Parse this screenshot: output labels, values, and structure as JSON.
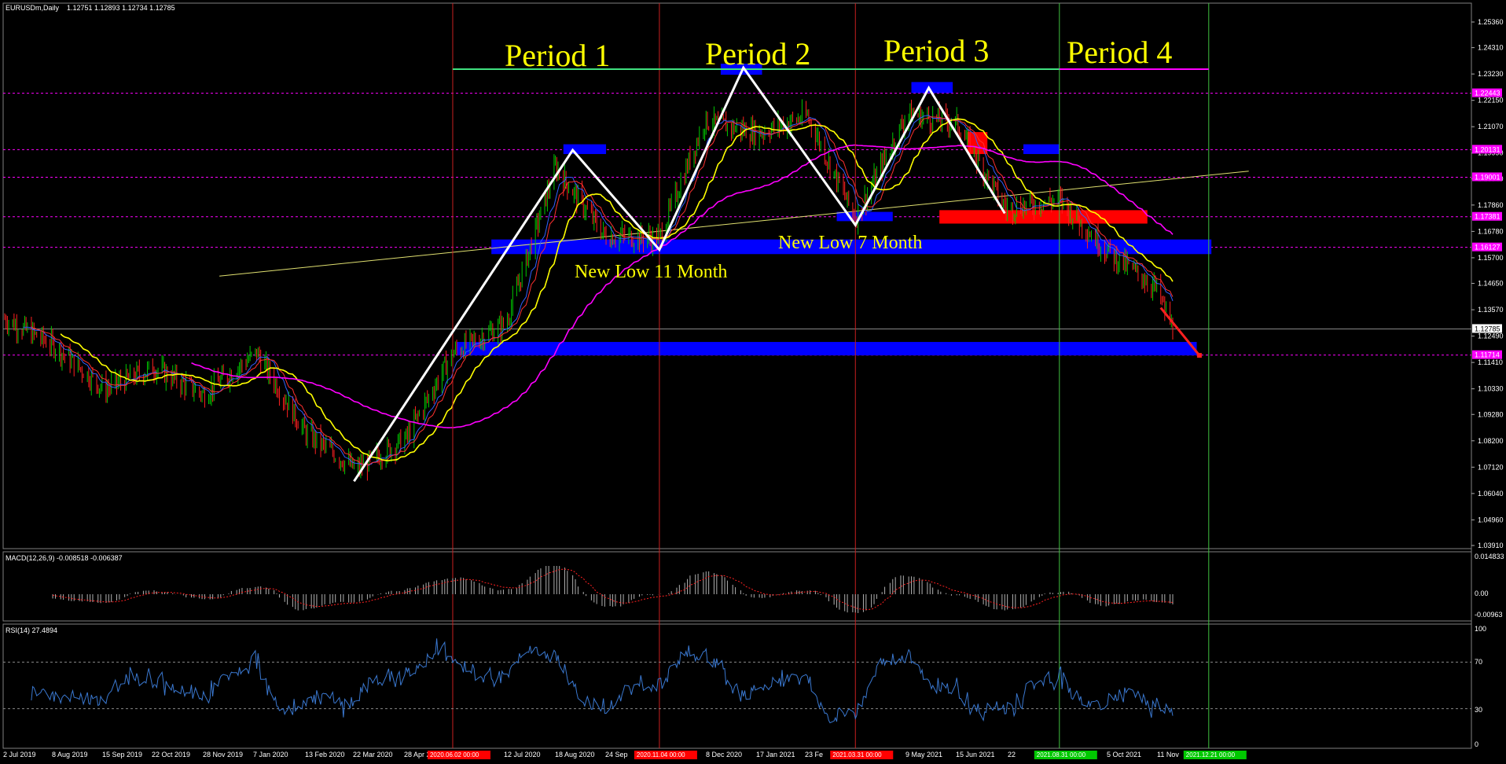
{
  "header": {
    "title": "EURUSDm,Daily",
    "ohlc": "1.12751 1.12893 1.12734 1.12785"
  },
  "colors": {
    "background": "#000000",
    "price_line": "#ffff00",
    "ma_slow": "#ff00ff",
    "bull_candle": "#00c800",
    "bear_candle": "#ff2020",
    "zone_blue": "#0000ff",
    "zone_red": "#ff0000",
    "rsi_line": "#3a78d0"
  },
  "price_axis": {
    "labels": [
      "1.25360",
      "1.24310",
      "1.23230",
      "1.22150",
      "1.21070",
      "1.19990",
      "1.18940",
      "1.17860",
      "1.16780",
      "1.15700",
      "1.14650",
      "1.13570",
      "1.12490",
      "1.11410",
      "1.10330",
      "1.09280",
      "1.08200",
      "1.07120",
      "1.06040",
      "1.04960",
      "1.03910"
    ],
    "markers": [
      {
        "value": "1.22443",
        "color": "#ff00ff"
      },
      {
        "value": "1.20131",
        "color": "#ff00ff"
      },
      {
        "value": "1.19001",
        "color": "#ff00ff"
      },
      {
        "value": "1.17381",
        "color": "#ff00ff"
      },
      {
        "value": "1.16127",
        "color": "#ff00ff"
      },
      {
        "value": "1.12785",
        "color": "#000000",
        "bg": "#ffffff"
      },
      {
        "value": "1.11714",
        "color": "#ff00ff"
      }
    ]
  },
  "macd": {
    "title": "MACD(12,26,9) -0.008518 -0.006387",
    "axis": [
      "0.014833",
      "0.00",
      "-0.00963"
    ]
  },
  "rsi": {
    "title": "RSI(14) 27.4894",
    "axis": [
      "100",
      "70",
      "30",
      "0"
    ]
  },
  "time_axis": {
    "labels": [
      "2 Jul 2019",
      "8 Aug 2019",
      "15 Sep 2019",
      "22 Oct 2019",
      "28 Nov 2019",
      "7 Jan 2020",
      "13 Feb 2020",
      "22 Mar 2020",
      "28 Apr 2020",
      "12 Jul 2020",
      "18 Aug 2020",
      "24 Sep",
      "8 Dec 2020",
      "17 Jan 2021",
      "23 Fe",
      "1",
      "9 May 2021",
      "15 Jun 2021",
      "22",
      "2021",
      "5 Oct 2021",
      "11 Nov"
    ],
    "tags": [
      {
        "text": "2020.06.02 00:00",
        "color": "#ff0000"
      },
      {
        "text": "2020.11.04 00:00",
        "color": "#ff0000"
      },
      {
        "text": "2021.03.31 00:00",
        "color": "#ff0000"
      },
      {
        "text": "2021.08.31 00:00",
        "color": "#00c800"
      },
      {
        "text": "2021.12.21 00:00",
        "color": "#00c800"
      }
    ]
  },
  "annotations": {
    "period1": "Period 1",
    "period2": "Period 2",
    "period3": "Period 3",
    "period4": "Period 4",
    "low11": "New Low 11 Month",
    "low7": "New Low 7 Month"
  },
  "chart_data": {
    "type": "line",
    "symbol": "EURUSDm",
    "timeframe": "Daily",
    "ylim": [
      1.0391,
      1.2536
    ],
    "zigzag_points": [
      {
        "date": "2020-03-20",
        "price": 1.0654
      },
      {
        "date": "2020-08-31",
        "price": 1.2011
      },
      {
        "date": "2020-11-04",
        "price": 1.1603
      },
      {
        "date": "2021-01-06",
        "price": 1.2349
      },
      {
        "date": "2021-03-31",
        "price": 1.1704
      },
      {
        "date": "2021-05-25",
        "price": 1.2266
      },
      {
        "date": "2021-07-21",
        "price": 1.1752
      }
    ],
    "price_path": [
      {
        "date": "2019-07-02",
        "price": 1.132
      },
      {
        "date": "2019-08-08",
        "price": 1.121
      },
      {
        "date": "2019-09-15",
        "price": 1.103
      },
      {
        "date": "2019-10-22",
        "price": 1.112
      },
      {
        "date": "2019-11-28",
        "price": 1.101
      },
      {
        "date": "2020-01-07",
        "price": 1.118
      },
      {
        "date": "2020-02-13",
        "price": 1.085
      },
      {
        "date": "2020-03-22",
        "price": 1.07
      },
      {
        "date": "2020-04-28",
        "price": 1.083
      },
      {
        "date": "2020-06-02",
        "price": 1.118
      },
      {
        "date": "2020-07-12",
        "price": 1.13
      },
      {
        "date": "2020-08-18",
        "price": 1.194
      },
      {
        "date": "2020-09-24",
        "price": 1.166
      },
      {
        "date": "2020-11-04",
        "price": 1.165
      },
      {
        "date": "2020-12-08",
        "price": 1.213
      },
      {
        "date": "2021-01-17",
        "price": 1.208
      },
      {
        "date": "2021-02-23",
        "price": 1.215
      },
      {
        "date": "2021-03-31",
        "price": 1.173
      },
      {
        "date": "2021-05-09",
        "price": 1.216
      },
      {
        "date": "2021-06-15",
        "price": 1.212
      },
      {
        "date": "2021-07-22",
        "price": 1.177
      },
      {
        "date": "2021-08-31",
        "price": 1.181
      },
      {
        "date": "2021-10-05",
        "price": 1.16
      },
      {
        "date": "2021-11-11",
        "price": 1.145
      },
      {
        "date": "2021-11-24",
        "price": 1.1278
      }
    ],
    "horizontal_levels": [
      1.22443,
      1.20131,
      1.19001,
      1.17381,
      1.16127,
      1.11714
    ],
    "period_dividers": [
      "2020-06-02",
      "2020-11-04",
      "2021-03-31",
      "2021-08-31",
      "2021-12-21"
    ]
  }
}
